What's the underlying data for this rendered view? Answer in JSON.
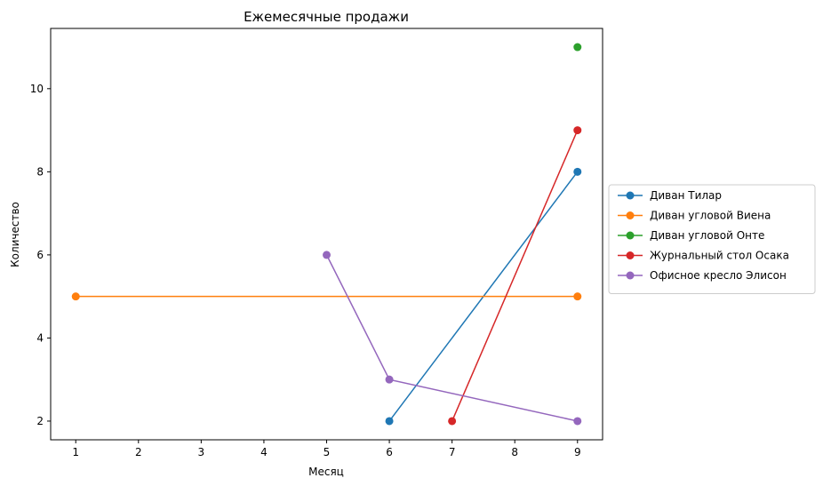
{
  "chart_data": {
    "type": "line",
    "title": "Ежемесячные продажи",
    "xlabel": "Месяц",
    "ylabel": "Количество",
    "xlim": [
      0.6,
      9.4
    ],
    "ylim": [
      1.55,
      11.45
    ],
    "xticks": [
      1,
      2,
      3,
      4,
      5,
      6,
      7,
      8,
      9
    ],
    "yticks": [
      2,
      4,
      6,
      8,
      10
    ],
    "grid": false,
    "legend": "center-right-outside",
    "series": [
      {
        "name": "Диван Тилар",
        "color": "#1f77b4",
        "points": [
          [
            6,
            2
          ],
          [
            9,
            8
          ]
        ]
      },
      {
        "name": "Диван угловой Виена",
        "color": "#ff7f0e",
        "points": [
          [
            1,
            5
          ],
          [
            9,
            5
          ]
        ]
      },
      {
        "name": "Диван угловой Онте",
        "color": "#2ca02c",
        "points": [
          [
            9,
            11
          ]
        ]
      },
      {
        "name": "Журнальный стол Осака",
        "color": "#d62728",
        "points": [
          [
            7,
            2
          ],
          [
            9,
            9
          ]
        ]
      },
      {
        "name": "Офисное кресло Элисон",
        "color": "#9467bd",
        "points": [
          [
            5,
            6
          ],
          [
            6,
            3
          ],
          [
            9,
            2
          ]
        ]
      }
    ]
  }
}
